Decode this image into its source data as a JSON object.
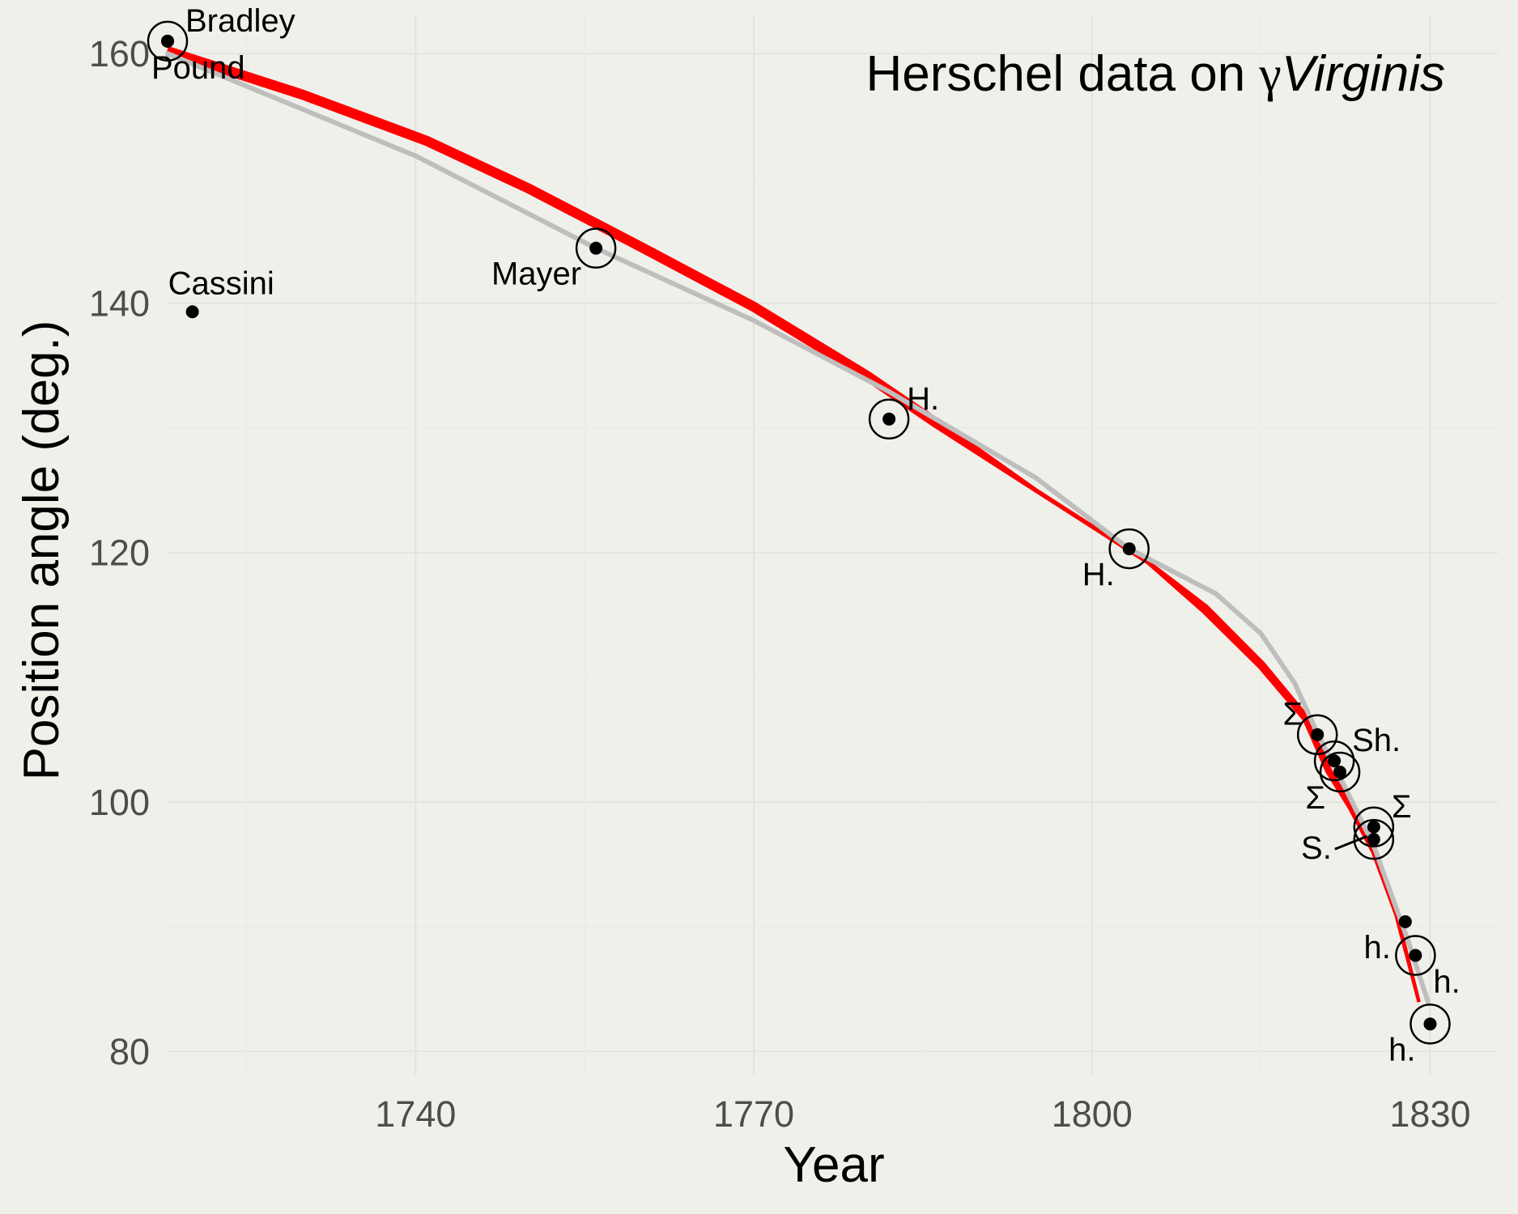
{
  "chart_data": {
    "type": "scatter",
    "title": {
      "prefix": "Herschel data on ",
      "greek": "γ",
      "star": "Virginis"
    },
    "xlabel": "Year",
    "ylabel": "Position angle (deg.)",
    "xlim": [
      1718,
      1836
    ],
    "ylim": [
      78,
      163
    ],
    "xticks": [
      1740,
      1770,
      1800,
      1830
    ],
    "xtick_labels": [
      "1740",
      "1770",
      "1800",
      "1830"
    ],
    "yticks": [
      80,
      100,
      120,
      140,
      160
    ],
    "ytick_labels": [
      "80",
      "100",
      "120",
      "140",
      "160"
    ],
    "grid": true,
    "points": [
      {
        "year": 1718.0,
        "angle": 161.0,
        "circled": true,
        "label": "Bradley",
        "label_pos": "upper-right"
      },
      {
        "year": 1718.0,
        "angle": 161.0,
        "circled": false,
        "label": "Pound",
        "label_pos": "lower"
      },
      {
        "year": 1720.2,
        "angle": 139.3,
        "circled": false,
        "label": "Cassini",
        "label_pos": "above"
      },
      {
        "year": 1756.0,
        "angle": 144.4,
        "circled": true,
        "label": "Mayer",
        "label_pos": "lower-left"
      },
      {
        "year": 1782.0,
        "angle": 130.7,
        "circled": true,
        "label": "H.",
        "label_pos": "upper-right"
      },
      {
        "year": 1803.3,
        "angle": 120.3,
        "circled": true,
        "label": "H.",
        "label_pos": "lower-left"
      },
      {
        "year": 1820.0,
        "angle": 105.4,
        "circled": true,
        "label": "Σ",
        "label_pos": "upper-left"
      },
      {
        "year": 1821.5,
        "angle": 103.3,
        "circled": true,
        "label": "Sh.",
        "label_pos": "upper-right"
      },
      {
        "year": 1822.0,
        "angle": 102.4,
        "circled": true,
        "label": "Σ",
        "label_pos": "lower-left"
      },
      {
        "year": 1825.0,
        "angle": 98.0,
        "circled": true,
        "label": "Σ",
        "label_pos": "upper-right"
      },
      {
        "year": 1825.0,
        "angle": 97.0,
        "circled": true,
        "label": "S.",
        "label_pos": "lower-left-leader"
      },
      {
        "year": 1827.8,
        "angle": 90.4,
        "circled": false,
        "label": "h.",
        "label_pos": "lower-left"
      },
      {
        "year": 1828.7,
        "angle": 87.7,
        "circled": true,
        "label": "h.",
        "label_pos": "lower-right"
      },
      {
        "year": 1830.0,
        "angle": 82.2,
        "circled": true,
        "label": "h.",
        "label_pos": "lower-left"
      }
    ],
    "series": [
      {
        "style": "red",
        "x": [
          1718,
          1730,
          1741,
          1750,
          1760,
          1770,
          1780,
          1786,
          1795,
          1805,
          1810,
          1815,
          1819,
          1821,
          1823,
          1825,
          1827,
          1829
        ],
        "y": [
          160.2,
          156.7,
          153.0,
          149.2,
          144.5,
          139.7,
          134.2,
          130.5,
          125.0,
          119.2,
          115.5,
          111.0,
          106.7,
          102.5,
          99.5,
          96.0,
          91.0,
          84.0
        ]
      },
      {
        "style": "grey",
        "x": [
          1718,
          1740,
          1756,
          1770,
          1782,
          1795,
          1803.3,
          1811,
          1815,
          1818,
          1820,
          1822,
          1825,
          1828,
          1829.8
        ],
        "y": [
          160.0,
          151.8,
          144.4,
          138.6,
          132.9,
          126.0,
          120.3,
          116.7,
          113.5,
          109.5,
          105.5,
          102.0,
          96.5,
          89.0,
          84.0
        ]
      }
    ],
    "colors": {
      "background": "#f0f0eb",
      "grid": "#e4e4df",
      "red": "#ff0000",
      "grey": "#bebebe",
      "points": "#000000"
    }
  }
}
